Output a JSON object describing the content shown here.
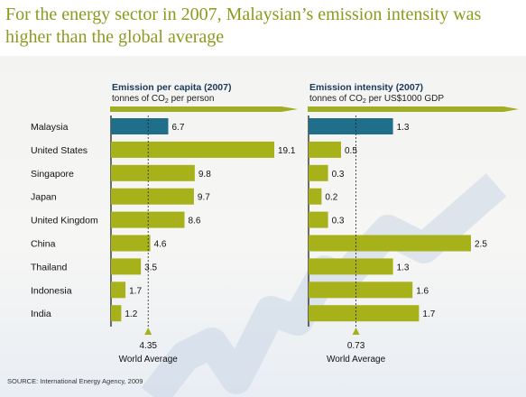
{
  "headline": {
    "line1": "For the energy sector in 2007, Malaysian’s emission intensity  was",
    "line2": "higher than the global average"
  },
  "colors": {
    "highlight": "#1f6f8b",
    "bar": "#a7b21a",
    "headline": "#8c9a1e",
    "arrow": "#9fae24"
  },
  "chart_data": [
    {
      "type": "bar",
      "orientation": "horizontal",
      "title": "Emission per capita (2007)",
      "subtitle": {
        "pre": "tonnes of CO",
        "sub": "2",
        "post": " per person"
      },
      "categories": [
        "Malaysia",
        "United States",
        "Singapore",
        "Japan",
        "United Kingdom",
        "China",
        "Thailand",
        "Indonesia",
        "India"
      ],
      "values": [
        6.7,
        19.1,
        9.8,
        9.7,
        8.6,
        4.6,
        3.5,
        1.7,
        1.2
      ],
      "value_labels": [
        "6.7",
        "19.1",
        "9.8",
        "9.7",
        "8.6",
        "4.6",
        "3.5",
        "1.7",
        "1.2"
      ],
      "highlight_index": 0,
      "xlim": [
        0,
        19.1
      ],
      "reference": {
        "value": 4.35,
        "value_label": "4.35",
        "label": "World Average"
      }
    },
    {
      "type": "bar",
      "orientation": "horizontal",
      "title": "Emission intensity (2007)",
      "subtitle": {
        "pre": "tonnes of CO",
        "sub": "2",
        "post": " per US$1000 GDP"
      },
      "categories": [
        "Malaysia",
        "United States",
        "Singapore",
        "Japan",
        "United Kingdom",
        "China",
        "Thailand",
        "Indonesia",
        "India"
      ],
      "values": [
        1.3,
        0.5,
        0.3,
        0.2,
        0.3,
        2.5,
        1.3,
        1.6,
        1.7
      ],
      "value_labels": [
        "1.3",
        "0.5",
        "0.3",
        "0.2",
        "0.3",
        "2.5",
        "1.3",
        "1.6",
        "1.7"
      ],
      "highlight_index": 0,
      "xlim": [
        0,
        2.5
      ],
      "reference": {
        "value": 0.73,
        "value_label": "0.73",
        "label": "World Average"
      }
    }
  ],
  "source": "SOURCE: International Energy Agency, 2009"
}
